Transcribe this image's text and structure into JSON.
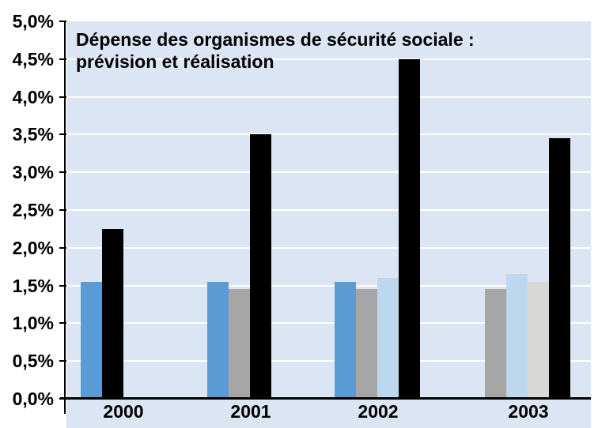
{
  "chart_data": {
    "type": "bar",
    "title": "Dépense des organismes de sécurité sociale : prévision et réalisation",
    "title_lines": [
      "Dépense des organismes de sécurité sociale :",
      "prévision et réalisation"
    ],
    "categories": [
      "2000",
      "2001",
      "2002",
      "2003"
    ],
    "xlabel": "",
    "ylabel": "",
    "unit": "%",
    "decimal_separator": ",",
    "y_axis": {
      "min": 0,
      "max": 5,
      "step": 0.5,
      "tick_labels": [
        "5,0%",
        "4,5%",
        "4,0%",
        "3,5%",
        "3,0%",
        "2,5%",
        "2,0%",
        "1,5%",
        "1,0%",
        "0,5%",
        "0,0%"
      ]
    },
    "legend": "none",
    "grid": "horizontal-white",
    "plot_bg_color": "#dce5f3",
    "gridline_color": "#ffffff",
    "axis_color": "#000000",
    "series_colors": {
      "blue": "#5b9bd5",
      "gray": "#a6a6a6",
      "lightblue": "#bdd7ee",
      "lightgray": "#d8d8d4",
      "black": "#000000"
    },
    "groups": [
      {
        "label": "2000",
        "bars": [
          {
            "color_key": "blue",
            "value": 1.55
          },
          {
            "color_key": "black",
            "value": 2.25
          }
        ]
      },
      {
        "label": "2001",
        "bars": [
          {
            "color_key": "blue",
            "value": 1.55
          },
          {
            "color_key": "gray",
            "value": 1.45
          },
          {
            "color_key": "black",
            "value": 3.5
          }
        ]
      },
      {
        "label": "2002",
        "bars": [
          {
            "color_key": "blue",
            "value": 1.55
          },
          {
            "color_key": "gray",
            "value": 1.45
          },
          {
            "color_key": "lightblue",
            "value": 1.6
          },
          {
            "color_key": "black",
            "value": 4.5
          }
        ]
      },
      {
        "label": "2003",
        "bars": [
          {
            "color_key": "gray",
            "value": 1.45
          },
          {
            "color_key": "lightblue",
            "value": 1.65
          },
          {
            "color_key": "lightgray",
            "value": 1.55
          },
          {
            "color_key": "black",
            "value": 3.45
          }
        ]
      }
    ]
  }
}
